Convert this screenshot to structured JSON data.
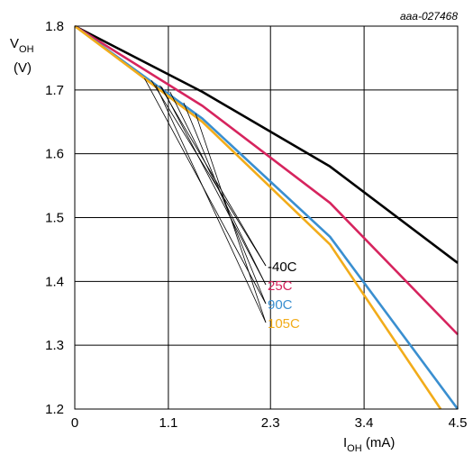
{
  "figure_code": "aaa-027468",
  "chart_data": {
    "type": "line",
    "xlabel": {
      "main": "I",
      "sub": "OH",
      "unit": " (mA)"
    },
    "ylabel": {
      "main": "V",
      "sub": "OH",
      "unit": "(V)"
    },
    "xlim": [
      0,
      4.5
    ],
    "ylim": [
      1.2,
      1.8
    ],
    "x_ticks": [
      0,
      1.1,
      2.3,
      3.4,
      4.5
    ],
    "x_tick_labels": [
      "0",
      "1.1",
      "2.3",
      "3.4",
      "4.5"
    ],
    "y_ticks": [
      1.2,
      1.3,
      1.4,
      1.5,
      1.6,
      1.7,
      1.8
    ],
    "y_tick_labels": [
      "1.2",
      "1.3",
      "1.4",
      "1.5",
      "1.6",
      "1.7",
      "1.8"
    ],
    "grid": true,
    "series": [
      {
        "name": "-40C",
        "color": "#000000",
        "points": [
          [
            0,
            1.8
          ],
          [
            1.5,
            1.697
          ],
          [
            3.0,
            1.58
          ],
          [
            4.5,
            1.429
          ]
        ]
      },
      {
        "name": "25C",
        "color": "#d6245e",
        "points": [
          [
            0,
            1.8
          ],
          [
            1.5,
            1.675
          ],
          [
            3.0,
            1.523
          ],
          [
            4.5,
            1.317
          ]
        ]
      },
      {
        "name": "90C",
        "color": "#3a8fd0",
        "points": [
          [
            0,
            1.8
          ],
          [
            1.5,
            1.655
          ],
          [
            3.0,
            1.47
          ],
          [
            4.5,
            1.2
          ]
        ]
      },
      {
        "name": "105C",
        "color": "#f2ac1a",
        "points": [
          [
            0,
            1.8
          ],
          [
            1.5,
            1.65
          ],
          [
            3.0,
            1.458
          ],
          [
            4.3,
            1.2
          ]
        ]
      }
    ],
    "callouts": [
      {
        "series": "-40C",
        "fan": [
          [
            0.9,
            1.715
          ],
          [
            1.0,
            1.707
          ]
        ]
      },
      {
        "series": "25C",
        "fan": [
          [
            1.02,
            1.705
          ],
          [
            1.12,
            1.697
          ]
        ]
      },
      {
        "series": "90C",
        "fan": [
          [
            0.82,
            1.718
          ],
          [
            1.28,
            1.68
          ]
        ]
      },
      {
        "series": "105C",
        "fan": [
          [
            0.95,
            1.708
          ],
          [
            1.42,
            1.663
          ]
        ]
      }
    ]
  }
}
